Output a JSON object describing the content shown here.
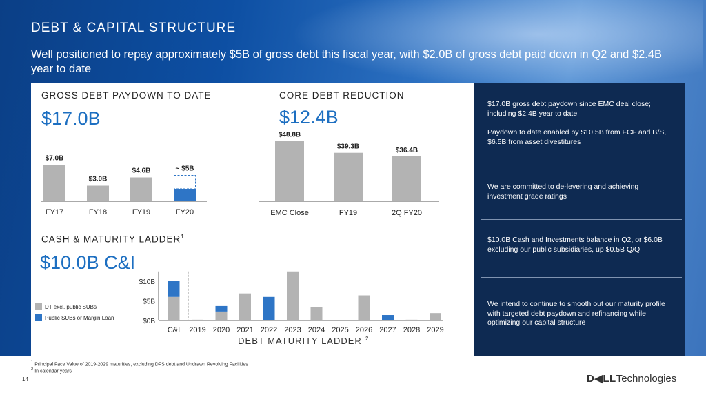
{
  "slide": {
    "title": "DEBT & CAPITAL STRUCTURE",
    "subtitle": "Well positioned to repay approximately $5B of gross debt this fiscal year, with $2.0B of gross debt paid down in Q2 and $2.4B year to date",
    "page_number": "14",
    "logo_bold": "D◀LL",
    "logo_light": "Technologies"
  },
  "sections": {
    "gross_title": "GROSS DEBT PAYDOWN TO DATE",
    "gross_big": "$17.0B",
    "core_title": "CORE DEBT REDUCTION",
    "core_big": "$12.4B",
    "cash_title": "CASH & MATURITY LADDER",
    "cash_title_sup": "1",
    "cash_big": "$10.0B C&I"
  },
  "right_panel": {
    "items": [
      "$17.0B gross debt paydown since EMC deal close; including $2.4B year to date",
      "Paydown to date enabled by $10.5B from FCF and B/S, $6.5B from asset divestitures",
      "We are committed to de-levering and achieving investment grade ratings",
      "$10.0B Cash and Investments balance in Q2, or $6.0B excluding our public subsidiaries, up $0.5B Q/Q",
      "We intend to continue to smooth out our maturity profile with targeted debt paydown and refinancing while optimizing our capital structure"
    ]
  },
  "footnotes": {
    "note1_sup": "1",
    "note1": "Principal Face Value of 2019-2029 maturities, excluding DFS debt and Undrawn Revolving Facilities",
    "note2_sup": "2",
    "note2": "In calendar years"
  },
  "colors": {
    "gray": "#b3b3b3",
    "blue": "#2e75c6",
    "accent": "#1d6fc1",
    "panel_dark": "#0e2a52"
  },
  "chart_data": [
    {
      "type": "bar",
      "title": "GROSS DEBT PAYDOWN TO DATE",
      "categories": [
        "FY17",
        "FY18",
        "FY19",
        "FY20"
      ],
      "values": [
        7.0,
        3.0,
        4.6,
        5.0
      ],
      "labels": [
        "$7.0B",
        "$3.0B",
        "$4.6B",
        "~ $5B"
      ],
      "fy20_actual_portion": 2.4,
      "fy20_remaining_dashed": 2.6,
      "ymax": 8
    },
    {
      "type": "bar",
      "title": "CORE DEBT REDUCTION",
      "categories": [
        "EMC Close",
        "FY19",
        "2Q FY20"
      ],
      "values": [
        48.8,
        39.3,
        36.4
      ],
      "labels": [
        "$48.8B",
        "$39.3B",
        "$36.4B"
      ],
      "ymax": 52
    },
    {
      "type": "bar",
      "title": "DEBT MATURITY LADDER",
      "title_sup": "2",
      "stacked": true,
      "categories": [
        "C&I",
        "2019",
        "2020",
        "2021",
        "2022",
        "2023",
        "2024",
        "2025",
        "2026",
        "2027",
        "2028",
        "2029"
      ],
      "series": [
        {
          "name": "DT excl. public SUBs",
          "values": [
            6.0,
            0.2,
            2.3,
            6.9,
            0.0,
            12.5,
            3.5,
            0.0,
            6.4,
            0.0,
            0.2,
            1.9
          ]
        },
        {
          "name": "Public SUBs or Margin Loan",
          "values": [
            4.0,
            0.0,
            1.4,
            0.0,
            6.0,
            0.0,
            0.0,
            0.0,
            0.0,
            1.4,
            0.0,
            0.0
          ]
        }
      ],
      "yticks": [
        "$0B",
        "$5B",
        "$10B"
      ],
      "ytick_values": [
        0,
        5,
        10
      ],
      "ylim": [
        0,
        12.5
      ],
      "legend_position": "left"
    }
  ]
}
